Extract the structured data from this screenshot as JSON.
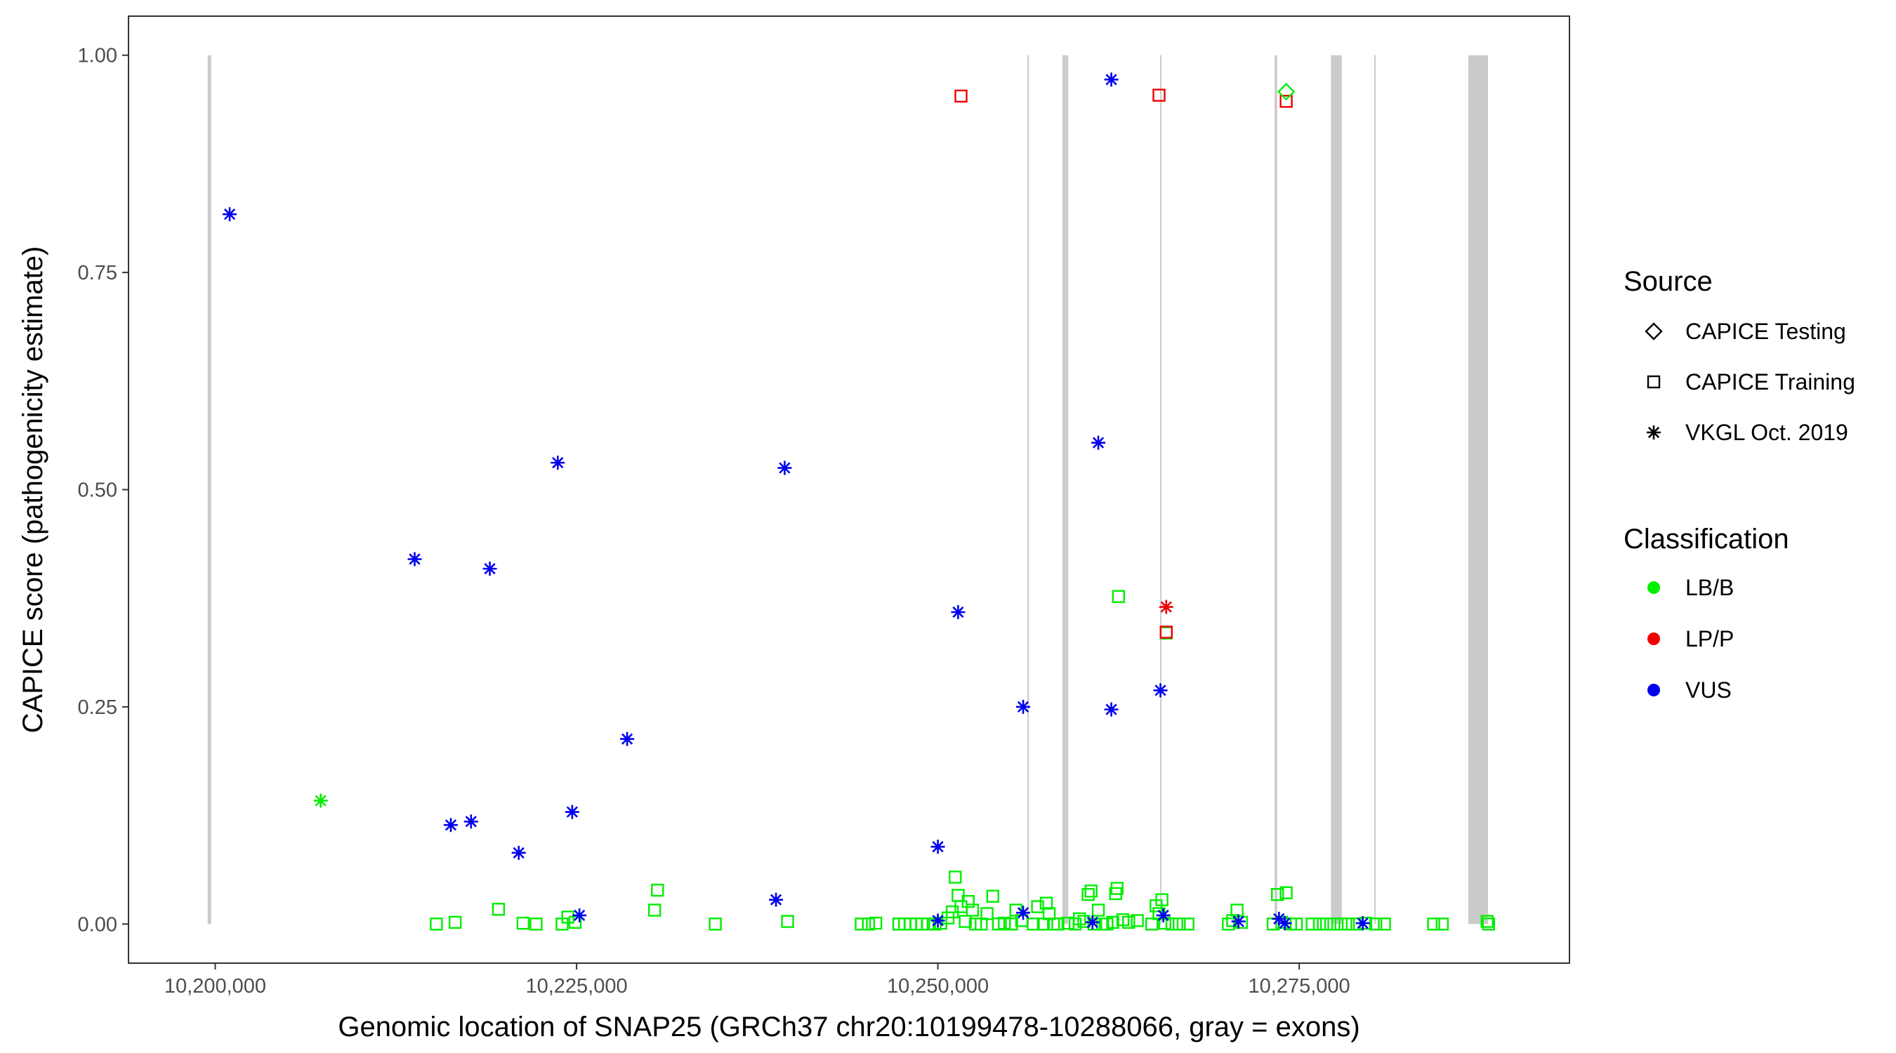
{
  "chart_data": {
    "type": "scatter",
    "xlabel": "Genomic location of SNAP25 (GRCh37 chr20:10199478-10288066, gray = exons)",
    "ylabel": "CAPICE score (pathogenicity estimate)",
    "xlim": [
      10194000,
      10293700
    ],
    "ylim": [
      -0.045,
      1.045
    ],
    "x_ticks": [
      10200000,
      10225000,
      10250000,
      10275000
    ],
    "x_tick_labels": [
      "10,200,000",
      "10,225,000",
      "10,250,000",
      "10,275,000"
    ],
    "y_ticks": [
      0,
      0.25,
      0.5,
      0.75,
      1.0
    ],
    "y_tick_labels": [
      "0.00",
      "0.25",
      "0.50",
      "0.75",
      "1.00"
    ],
    "grid": false,
    "exons": [
      [
        10199478,
        10199720
      ],
      [
        10256200,
        10256260
      ],
      [
        10258620,
        10259020
      ],
      [
        10265380,
        10265440
      ],
      [
        10273300,
        10273480
      ],
      [
        10277200,
        10277950
      ],
      [
        10280200,
        10280260
      ],
      [
        10286700,
        10288066
      ]
    ],
    "exon_color": "#bebebe",
    "legend": {
      "source_title": "Source",
      "source_items": [
        {
          "label": "CAPICE Testing",
          "shape": "diamond"
        },
        {
          "label": "CAPICE Training",
          "shape": "square"
        },
        {
          "label": "VKGL Oct. 2019",
          "shape": "asterisk"
        }
      ],
      "classification_title": "Classification",
      "classification_items": [
        {
          "label": "LB/B",
          "color": "#00ee00"
        },
        {
          "label": "LP/P",
          "color": "#ee0000"
        },
        {
          "label": "VUS",
          "color": "#0000ee"
        }
      ],
      "position": "right"
    },
    "series": [
      {
        "source": "CAPICE Training",
        "classification": "LB/B",
        "color": "#00ee00",
        "shape": "square",
        "points": [
          [
            10215300,
            0.0
          ],
          [
            10216600,
            0.002
          ],
          [
            10219600,
            0.017
          ],
          [
            10221300,
            0.001
          ],
          [
            10222200,
            0.0
          ],
          [
            10224000,
            0.0
          ],
          [
            10224400,
            0.008
          ],
          [
            10224900,
            0.002
          ],
          [
            10230400,
            0.016
          ],
          [
            10230600,
            0.039
          ],
          [
            10234600,
            0.0
          ],
          [
            10239600,
            0.003
          ],
          [
            10244700,
            0.0
          ],
          [
            10245200,
            0.0
          ],
          [
            10245700,
            0.001
          ],
          [
            10247300,
            0.0
          ],
          [
            10247700,
            0.0
          ],
          [
            10248100,
            0.0
          ],
          [
            10248500,
            0.0
          ],
          [
            10248900,
            0.0
          ],
          [
            10249300,
            0.0
          ],
          [
            10249800,
            0.0
          ],
          [
            10250200,
            0.001
          ],
          [
            10250700,
            0.007
          ],
          [
            10251000,
            0.014
          ],
          [
            10251200,
            0.054
          ],
          [
            10251400,
            0.033
          ],
          [
            10251600,
            0.02
          ],
          [
            10251900,
            0.003
          ],
          [
            10252100,
            0.026
          ],
          [
            10252400,
            0.016
          ],
          [
            10252600,
            0.0
          ],
          [
            10253000,
            0.0
          ],
          [
            10253400,
            0.012
          ],
          [
            10253800,
            0.032
          ],
          [
            10254200,
            0.0
          ],
          [
            10254600,
            0.001
          ],
          [
            10255100,
            0.0
          ],
          [
            10255400,
            0.016
          ],
          [
            10255800,
            0.004
          ],
          [
            10256600,
            0.0
          ],
          [
            10256900,
            0.02
          ],
          [
            10257300,
            0.0
          ],
          [
            10257500,
            0.024
          ],
          [
            10257700,
            0.012
          ],
          [
            10258000,
            0.0
          ],
          [
            10258300,
            0.0
          ],
          [
            10259000,
            0.001
          ],
          [
            10259500,
            0.0
          ],
          [
            10259800,
            0.006
          ],
          [
            10260100,
            0.003
          ],
          [
            10260400,
            0.034
          ],
          [
            10260600,
            0.038
          ],
          [
            10260800,
            0.0
          ],
          [
            10261100,
            0.016
          ],
          [
            10261400,
            0.0
          ],
          [
            10261700,
            0.0
          ],
          [
            10262100,
            0.002
          ],
          [
            10262300,
            0.035
          ],
          [
            10262400,
            0.041
          ],
          [
            10262500,
            0.377
          ],
          [
            10262800,
            0.005
          ],
          [
            10263200,
            0.002
          ],
          [
            10263800,
            0.004
          ],
          [
            10264800,
            0.0
          ],
          [
            10265100,
            0.021
          ],
          [
            10265300,
            0.012
          ],
          [
            10265500,
            0.028
          ],
          [
            10265700,
            0.001
          ],
          [
            10265800,
            0.335
          ],
          [
            10266200,
            0.0
          ],
          [
            10266700,
            0.0
          ],
          [
            10267300,
            0.0
          ],
          [
            10270100,
            0.0
          ],
          [
            10270400,
            0.004
          ],
          [
            10270700,
            0.016
          ],
          [
            10271000,
            0.002
          ],
          [
            10273200,
            0.0
          ],
          [
            10273500,
            0.034
          ],
          [
            10273800,
            0.002
          ],
          [
            10274100,
            0.036
          ],
          [
            10274400,
            0.0
          ],
          [
            10274800,
            0.0
          ],
          [
            10275900,
            0.0
          ],
          [
            10276400,
            0.0
          ],
          [
            10276900,
            0.0
          ],
          [
            10277400,
            0.0
          ],
          [
            10277900,
            0.0
          ],
          [
            10278400,
            0.0
          ],
          [
            10279000,
            0.0
          ],
          [
            10279600,
            0.001
          ],
          [
            10280300,
            0.0
          ],
          [
            10280900,
            0.0
          ],
          [
            10284300,
            0.0
          ],
          [
            10284900,
            0.0
          ],
          [
            10288000,
            0.003
          ],
          [
            10288100,
            0.0
          ]
        ]
      },
      {
        "source": "CAPICE Training",
        "classification": "LP/P",
        "color": "#ee0000",
        "shape": "square",
        "points": [
          [
            10251600,
            0.953
          ],
          [
            10265300,
            0.954
          ],
          [
            10265800,
            0.336
          ],
          [
            10274100,
            0.947
          ]
        ]
      },
      {
        "source": "CAPICE Testing",
        "classification": "LB/B",
        "color": "#00ee00",
        "shape": "diamond",
        "points": [
          [
            10274100,
            0.958
          ]
        ]
      },
      {
        "source": "VKGL Oct. 2019",
        "classification": "LB/B",
        "color": "#00ee00",
        "shape": "asterisk",
        "points": [
          [
            10207300,
            0.142
          ]
        ]
      },
      {
        "source": "VKGL Oct. 2019",
        "classification": "LP/P",
        "color": "#ee0000",
        "shape": "asterisk",
        "points": [
          [
            10265800,
            0.365
          ]
        ]
      },
      {
        "source": "VKGL Oct. 2019",
        "classification": "VUS",
        "color": "#0000ee",
        "shape": "asterisk",
        "points": [
          [
            10201000,
            0.817
          ],
          [
            10213800,
            0.42
          ],
          [
            10216300,
            0.114
          ],
          [
            10217700,
            0.118
          ],
          [
            10219000,
            0.409
          ],
          [
            10221000,
            0.082
          ],
          [
            10223700,
            0.531
          ],
          [
            10224700,
            0.129
          ],
          [
            10225200,
            0.01
          ],
          [
            10228500,
            0.213
          ],
          [
            10238800,
            0.028
          ],
          [
            10239400,
            0.525
          ],
          [
            10250000,
            0.004
          ],
          [
            10250000,
            0.089
          ],
          [
            10251400,
            0.359
          ],
          [
            10255900,
            0.25
          ],
          [
            10255900,
            0.013
          ],
          [
            10260700,
            0.002
          ],
          [
            10261100,
            0.554
          ],
          [
            10262000,
            0.972
          ],
          [
            10262000,
            0.247
          ],
          [
            10265400,
            0.269
          ],
          [
            10265600,
            0.01
          ],
          [
            10270800,
            0.003
          ],
          [
            10273600,
            0.006
          ],
          [
            10274000,
            0.001
          ],
          [
            10279400,
            0.001
          ]
        ]
      }
    ]
  }
}
